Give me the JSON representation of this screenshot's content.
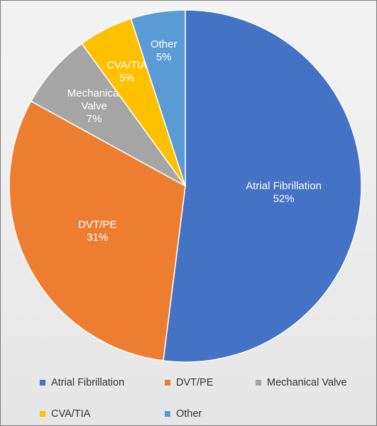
{
  "chart_data": {
    "type": "pie",
    "title": "",
    "slices": [
      {
        "label": "Atrial Fibrillation",
        "value": 52,
        "pct_label": "52%",
        "color": "#4472c4",
        "text_color": "#ffffff"
      },
      {
        "label": "DVT/PE",
        "value": 31,
        "pct_label": "31%",
        "color": "#ed7d31",
        "text_color": "#ffffff"
      },
      {
        "label": "Mechanical Valve",
        "value": 7,
        "pct_label": "7%",
        "color": "#a5a5a5",
        "text_color": "#ffffff"
      },
      {
        "label": "CVA/TIA",
        "value": 5,
        "pct_label": "5%",
        "color": "#ffc000",
        "text_color": "#ffffff"
      },
      {
        "label": "Other",
        "value": 5,
        "pct_label": "5%",
        "color": "#5b9bd5",
        "text_color": "#ffffff"
      }
    ],
    "legend": {
      "placement": "bottom",
      "entries": [
        "Atrial Fibrillation",
        "DVT/PE",
        "Mechanical Valve",
        "CVA/TIA",
        "Other"
      ]
    }
  }
}
